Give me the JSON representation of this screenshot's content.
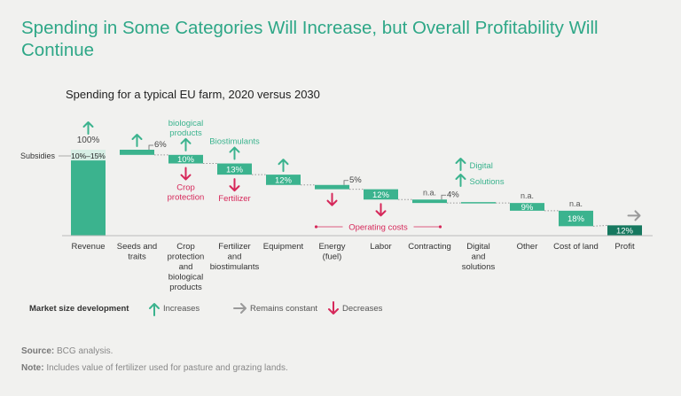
{
  "title": "Spending in Some Categories Will Increase, but Overall Profitability Will Continue",
  "subtitle": "Spending for a typical EU farm, 2020 versus 2030",
  "colors": {
    "bar": "#3bb38e",
    "profit": "#16785f",
    "increase": "#3bb38e",
    "decrease": "#d6285a",
    "constant": "#9a9a9a",
    "text": "#333333",
    "title": "#2ea787"
  },
  "chart_data": {
    "type": "waterfall",
    "title": "Spending for a typical EU farm, 2020 versus 2030",
    "categories": [
      "Revenue",
      "Seeds and traits",
      "Crop protection and biological products",
      "Fertilizer and biostimulants",
      "Equipment",
      "Energy (fuel)",
      "Labor",
      "Contracting",
      "Digital and solutions",
      "Other",
      "Cost of land",
      "Profit"
    ],
    "category_lines": [
      [
        "Revenue"
      ],
      [
        "Seeds and",
        "traits"
      ],
      [
        "Crop",
        "protection",
        "and",
        "biological",
        "products"
      ],
      [
        "Fertilizer",
        "and",
        "biostimulants"
      ],
      [
        "Equipment"
      ],
      [
        "Energy",
        "(fuel)"
      ],
      [
        "Labor"
      ],
      [
        "Contracting"
      ],
      [
        "Digital",
        "and",
        "solutions"
      ],
      [
        "Other"
      ],
      [
        "Cost of land"
      ],
      [
        "Profit"
      ]
    ],
    "values_pct": [
      100,
      6,
      10,
      13,
      12,
      5,
      12,
      4,
      null,
      9,
      18,
      12
    ],
    "value_labels": [
      "100%",
      "6%",
      "10%",
      "13%",
      "12%",
      "5%",
      "12%",
      "4%",
      "",
      "9%",
      "18%",
      "12%"
    ],
    "value_label_position": [
      "above",
      "right",
      "inside",
      "inside",
      "inside",
      "right",
      "inside",
      "right",
      "",
      "inside",
      "inside",
      "inside"
    ],
    "market_size_notes": [
      "",
      "",
      "",
      "",
      "",
      "",
      "",
      "n.a.",
      "",
      "n.a.",
      "n.a.",
      ""
    ],
    "subsidies_label": "Subsidies",
    "subsidies_value_label": "10%–15%",
    "subsidies_pct": 12.5,
    "trend": [
      [
        {
          "dir": "increase",
          "label": ""
        }
      ],
      [
        {
          "dir": "increase",
          "label": ""
        }
      ],
      [
        {
          "dir": "increase",
          "label": "biological products",
          "label_lines": [
            "biological",
            "products"
          ]
        },
        {
          "dir": "decrease",
          "label": "Crop protection",
          "label_lines": [
            "Crop",
            "protection"
          ]
        }
      ],
      [
        {
          "dir": "increase",
          "label": "Biostimulants",
          "label_lines": [
            "Biostimulants"
          ]
        },
        {
          "dir": "decrease",
          "label": "Fertilizer",
          "label_lines": [
            "Fertilizer"
          ]
        }
      ],
      [
        {
          "dir": "increase",
          "label": ""
        }
      ],
      [
        {
          "dir": "decrease",
          "label": ""
        }
      ],
      [
        {
          "dir": "decrease",
          "label": ""
        }
      ],
      [],
      [
        {
          "dir": "increase",
          "label": "Digital"
        },
        {
          "dir": "increase",
          "label": "Solutions"
        }
      ],
      [],
      [],
      [
        {
          "dir": "constant",
          "label": ""
        }
      ]
    ],
    "group_annotation": "Operating costs",
    "legend": {
      "title": "Market size development",
      "items": [
        {
          "dir": "increase",
          "label": "Increases"
        },
        {
          "dir": "constant",
          "label": "Remains constant"
        },
        {
          "dir": "decrease",
          "label": "Decreases"
        }
      ]
    }
  },
  "footer": {
    "source_label": "Source:",
    "source_text": "BCG analysis.",
    "note_label": "Note:",
    "note_text": "Includes value of fertilizer used for pasture and grazing lands."
  }
}
